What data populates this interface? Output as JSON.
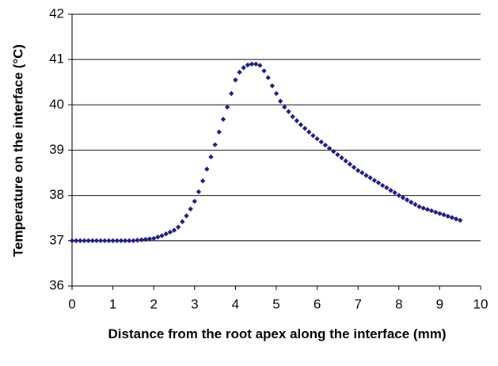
{
  "chart_data": {
    "type": "scatter",
    "xlabel": "Distance from the root apex along the interface (mm)",
    "ylabel": "Temperature on the interface (°C)",
    "color": "#1a1a80",
    "grid": true,
    "xlim": [
      0,
      10
    ],
    "xticks": [
      0,
      1,
      2,
      3,
      4,
      5,
      6,
      7,
      8,
      9,
      10
    ],
    "ylim": [
      36,
      42
    ],
    "yticks": [
      36,
      37,
      38,
      39,
      40,
      41,
      42
    ],
    "x": [
      0,
      0.1,
      0.2,
      0.3,
      0.4,
      0.5,
      0.6,
      0.7,
      0.8,
      0.9,
      1,
      1.1,
      1.2,
      1.3,
      1.4,
      1.5,
      1.6,
      1.7,
      1.8,
      1.9,
      2,
      2.1,
      2.2,
      2.3,
      2.4,
      2.5,
      2.6,
      2.7,
      2.8,
      2.9,
      3,
      3.1,
      3.2,
      3.3,
      3.4,
      3.5,
      3.6,
      3.7,
      3.8,
      3.9,
      4,
      4.1,
      4.2,
      4.3,
      4.4,
      4.5,
      4.6,
      4.7,
      4.8,
      4.9,
      5,
      5.1,
      5.2,
      5.3,
      5.4,
      5.5,
      5.6,
      5.7,
      5.8,
      5.9,
      6,
      6.1,
      6.2,
      6.3,
      6.4,
      6.5,
      6.6,
      6.7,
      6.8,
      6.9,
      7,
      7.1,
      7.2,
      7.3,
      7.4,
      7.5,
      7.6,
      7.7,
      7.8,
      7.9,
      8,
      8.1,
      8.2,
      8.3,
      8.4,
      8.5,
      8.6,
      8.7,
      8.8,
      8.9,
      9,
      9.1,
      9.2,
      9.3,
      9.4,
      9.5
    ],
    "values": [
      37,
      37,
      37,
      37,
      37,
      37,
      37,
      37,
      37,
      37,
      37,
      37,
      37,
      37,
      37,
      37,
      37.01,
      37.02,
      37.03,
      37.04,
      37.05,
      37.08,
      37.11,
      37.15,
      37.19,
      37.23,
      37.3,
      37.42,
      37.55,
      37.7,
      37.87,
      38.08,
      38.32,
      38.58,
      38.85,
      39.12,
      39.4,
      39.68,
      39.95,
      40.25,
      40.55,
      40.72,
      40.82,
      40.88,
      40.9,
      40.9,
      40.87,
      40.75,
      40.6,
      40.42,
      40.25,
      40.08,
      39.95,
      39.85,
      39.74,
      39.65,
      39.56,
      39.48,
      39.4,
      39.32,
      39.25,
      39.18,
      39.11,
      39.04,
      38.97,
      38.9,
      38.83,
      38.76,
      38.69,
      38.62,
      38.55,
      38.5,
      38.44,
      38.39,
      38.33,
      38.28,
      38.22,
      38.17,
      38.11,
      38.06,
      38,
      37.95,
      37.9,
      37.85,
      37.8,
      37.75,
      37.72,
      37.69,
      37.66,
      37.63,
      37.6,
      37.57,
      37.54,
      37.51,
      37.48,
      37.45
    ]
  }
}
